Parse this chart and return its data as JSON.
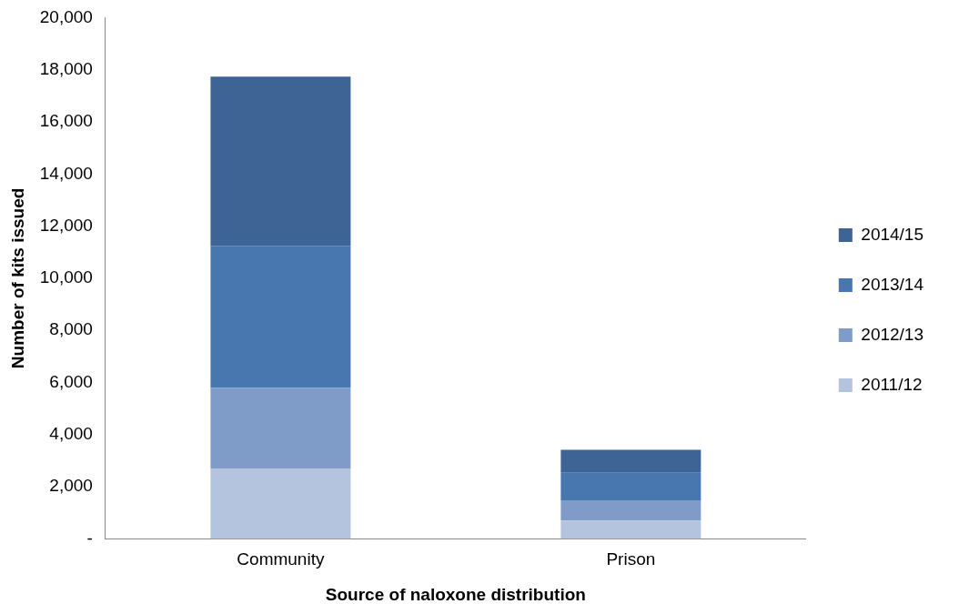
{
  "chart_data": {
    "type": "bar",
    "stacked": true,
    "xlabel": "Source of naloxone distribution",
    "ylabel": "Number of kits issued",
    "categories": [
      "Community",
      "Prison"
    ],
    "series": [
      {
        "name": "2011/12",
        "color": "#b4c3de",
        "values": [
          2700,
          700
        ]
      },
      {
        "name": "2012/13",
        "color": "#7f9cc8",
        "values": [
          3100,
          780
        ]
      },
      {
        "name": "2013/14",
        "color": "#4877b0",
        "values": [
          5440,
          1060
        ]
      },
      {
        "name": "2014/15",
        "color": "#3d6494",
        "values": [
          6500,
          880
        ]
      }
    ],
    "ylim": [
      0,
      20000
    ],
    "yticks": [
      {
        "value": 0,
        "label": "-"
      },
      {
        "value": 2000,
        "label": "2,000"
      },
      {
        "value": 4000,
        "label": "4,000"
      },
      {
        "value": 6000,
        "label": "6,000"
      },
      {
        "value": 8000,
        "label": "8,000"
      },
      {
        "value": 10000,
        "label": "10,000"
      },
      {
        "value": 12000,
        "label": "12,000"
      },
      {
        "value": 14000,
        "label": "14,000"
      },
      {
        "value": 16000,
        "label": "16,000"
      },
      {
        "value": 18000,
        "label": "18,000"
      },
      {
        "value": 20000,
        "label": "20,000"
      }
    ],
    "grid": false,
    "legend": "right"
  }
}
